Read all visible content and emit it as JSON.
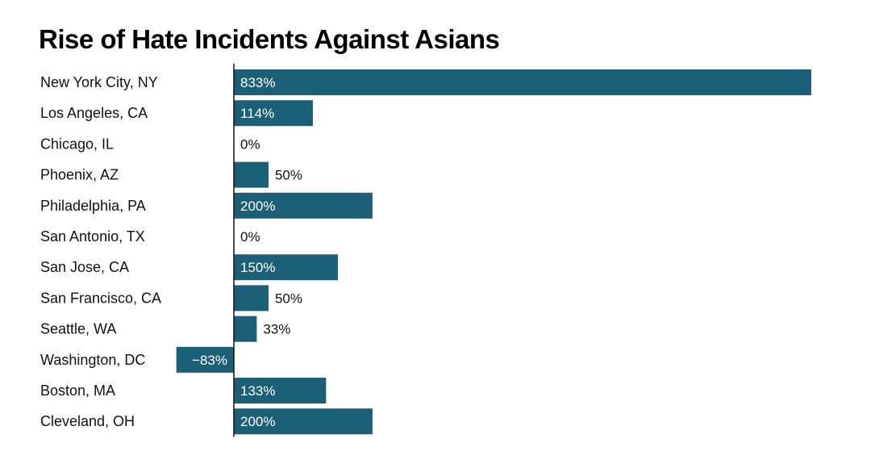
{
  "chart_data": {
    "type": "bar",
    "orientation": "horizontal",
    "title": "Rise of Hate Incidents Against Asians",
    "categories": [
      "New York City, NY",
      "Los Angeles, CA",
      "Chicago, IL",
      "Phoenix, AZ",
      "Philadelphia, PA",
      "San Antonio, TX",
      "San Jose, CA",
      "San Francisco, CA",
      "Seattle, WA",
      "Washington, DC",
      "Boston, MA",
      "Cleveland, OH"
    ],
    "values": [
      833,
      114,
      0,
      50,
      200,
      0,
      150,
      50,
      33,
      -83,
      133,
      200
    ],
    "value_labels": [
      "833%",
      "114%",
      "0%",
      "50%",
      "200%",
      "0%",
      "150%",
      "50%",
      "33%",
      "−83%",
      "133%",
      "200%"
    ],
    "unit": "%",
    "xlim": [
      -83,
      833
    ],
    "bar_color": "#1c6078",
    "grid": false,
    "legend": "none"
  }
}
